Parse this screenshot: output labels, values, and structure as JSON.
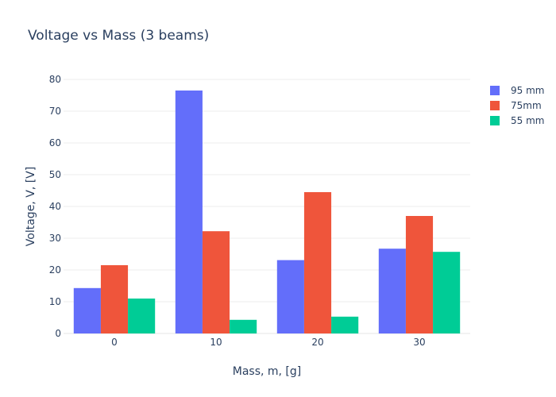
{
  "chart_data": {
    "type": "bar",
    "title": "Voltage vs Mass (3 beams)",
    "xlabel": "Mass, m, [g]",
    "ylabel": "Voltage, V, [V]",
    "categories": [
      "0",
      "10",
      "20",
      "30"
    ],
    "ylim": [
      0,
      80
    ],
    "yticks": [
      "0",
      "10",
      "20",
      "30",
      "40",
      "50",
      "60",
      "70",
      "80"
    ],
    "grid": true,
    "legend_position": "top-right",
    "series": [
      {
        "name": "95 mm",
        "color": "#636efa",
        "values": [
          14.3,
          76.5,
          23.1,
          26.7
        ]
      },
      {
        "name": "75mm",
        "color": "#ef553b",
        "values": [
          21.5,
          32.2,
          44.5,
          37.0
        ]
      },
      {
        "name": "55 mm",
        "color": "#00cc96",
        "values": [
          11.0,
          4.3,
          5.3,
          25.7
        ]
      }
    ]
  }
}
